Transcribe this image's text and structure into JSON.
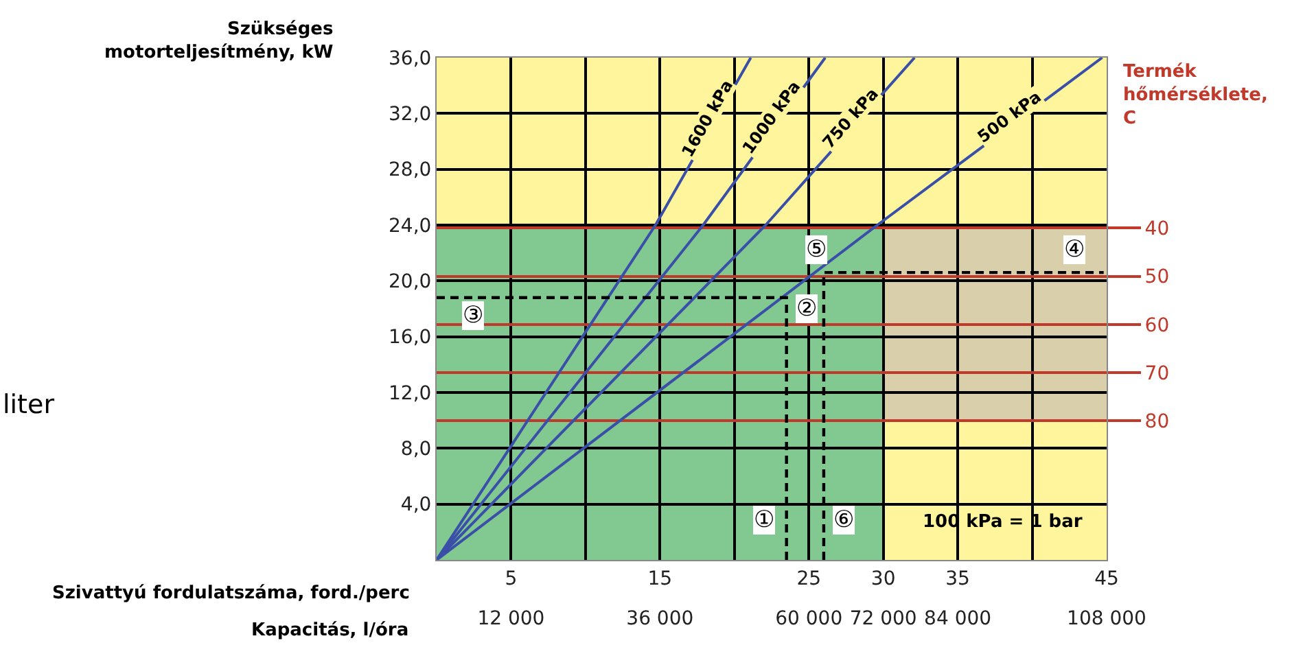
{
  "chart_data": {
    "type": "line",
    "ylabel": "Szükséges motorteljesítmény, kW",
    "y2label": "Termék hőmérséklete, C",
    "xlabel": "Szivattyú fordulatszáma, ford./perc",
    "x2label": "Kapacitás, l/óra",
    "xlim": [
      0,
      45
    ],
    "xticks": [
      {
        "value": 0,
        "label": null
      },
      5,
      {
        "value": 10,
        "label": null
      },
      15,
      {
        "value": 20,
        "label": null
      },
      25,
      30,
      35,
      {
        "value": 40,
        "label": null
      },
      45
    ],
    "x2lim": [
      0,
      108000
    ],
    "x2ticks": [
      {
        "value": 12000,
        "label": "12 000"
      },
      {
        "value": 36000,
        "label": "36 000"
      },
      {
        "value": 60000,
        "label": "60 000"
      },
      {
        "value": 72000,
        "label": "72 000"
      },
      {
        "value": 84000,
        "label": "84 000"
      },
      {
        "value": 108000,
        "label": "108 000"
      }
    ],
    "ylim": [
      0,
      36
    ],
    "yticks": [
      {
        "value": 4,
        "label": "4,0"
      },
      {
        "value": 8,
        "label": "8,0"
      },
      {
        "value": 12,
        "label": "12,0"
      },
      {
        "value": 16,
        "label": "16,0"
      },
      {
        "value": 20,
        "label": "20,0"
      },
      {
        "value": 24,
        "label": "24,0"
      },
      {
        "value": 28,
        "label": "28,0"
      },
      {
        "value": 32,
        "label": "32,0"
      },
      {
        "value": 36,
        "label": "36,0"
      }
    ],
    "y2lim": [
      108.8,
      4.7
    ],
    "y2ticks": [
      40,
      50,
      60,
      70,
      80
    ],
    "grid": true,
    "marker": "none",
    "bands": [
      {
        "axis": "y",
        "from": 0,
        "to": 36,
        "color": "#fff59d"
      },
      {
        "axis": "y2",
        "from": 40,
        "to": 80,
        "color": "#d9cfab"
      }
    ],
    "series": [
      {
        "type": "area",
        "color": "#82c891",
        "x": [
          0,
          30
        ],
        "values": [
          24,
          24
        ]
      },
      {
        "name": "1600 kPa",
        "color": "#3a4fa8",
        "x": [
          0,
          14.7,
          21.1
        ],
        "values": [
          0,
          24,
          36
        ]
      },
      {
        "name": "1000 kPa",
        "color": "#3a4fa8",
        "x": [
          0,
          17.9,
          26.1
        ],
        "values": [
          0,
          24,
          36
        ]
      },
      {
        "name": "750 kPa",
        "color": "#3a4fa8",
        "x": [
          0,
          22.1,
          32.1
        ],
        "values": [
          0,
          24,
          36
        ]
      },
      {
        "name": "500 kPa",
        "color": "#3a4fa8",
        "x": [
          0,
          29.6,
          44.7
        ],
        "values": [
          0,
          24,
          36
        ]
      },
      {
        "color": "#000000",
        "line_style": "dashed",
        "x": [
          0,
          23.5,
          23.5
        ],
        "values": [
          18.8,
          18.8,
          0
        ]
      },
      {
        "color": "#000000",
        "line_style": "dashed",
        "x": [
          26,
          26,
          44.8
        ],
        "values": [
          0,
          20.6,
          20.6
        ]
      }
    ],
    "annotations": [
      "①",
      "②",
      "③",
      "④",
      "⑤",
      "⑥",
      "100 kPa = 1 bar",
      "liter"
    ]
  }
}
